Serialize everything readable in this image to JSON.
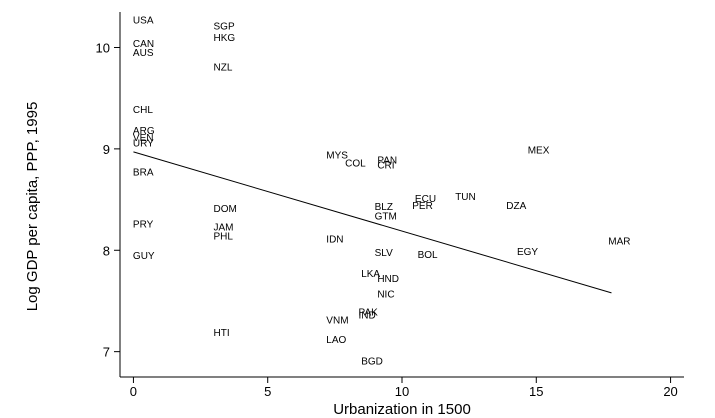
{
  "chart_data": {
    "type": "scatter",
    "title": "",
    "xlabel": "Urbanization in 1500",
    "ylabel": "Log GDP per capita, PPP, 1995",
    "xlim": [
      -0.5,
      20.5
    ],
    "ylim": [
      6.75,
      10.35
    ],
    "xticks": [
      0,
      5,
      10,
      15,
      20
    ],
    "yticks": [
      7,
      8,
      9,
      10
    ],
    "grid": false,
    "legend": "none",
    "marker": "country-code-text",
    "fit_line": {
      "x": [
        0,
        17.8
      ],
      "y": [
        8.97,
        7.58
      ]
    },
    "points": [
      {
        "label": "USA",
        "x": 0.0,
        "y": 10.27
      },
      {
        "label": "CAN",
        "x": 0.0,
        "y": 10.04
      },
      {
        "label": "AUS",
        "x": 0.0,
        "y": 9.95
      },
      {
        "label": "SGP",
        "x": 3.0,
        "y": 10.21
      },
      {
        "label": "HKG",
        "x": 3.0,
        "y": 10.1
      },
      {
        "label": "NZL",
        "x": 3.0,
        "y": 9.81
      },
      {
        "label": "CHL",
        "x": 0.0,
        "y": 9.39
      },
      {
        "label": "ARG",
        "x": 0.0,
        "y": 9.18
      },
      {
        "label": "VEN",
        "x": 0.0,
        "y": 9.11
      },
      {
        "label": "URY",
        "x": 0.0,
        "y": 9.06
      },
      {
        "label": "BRA",
        "x": 0.0,
        "y": 8.77
      },
      {
        "label": "PRY",
        "x": 0.0,
        "y": 8.26
      },
      {
        "label": "GUY",
        "x": 0.0,
        "y": 7.95
      },
      {
        "label": "DOM",
        "x": 3.0,
        "y": 8.41
      },
      {
        "label": "JAM",
        "x": 3.0,
        "y": 8.23
      },
      {
        "label": "PHL",
        "x": 3.0,
        "y": 8.14
      },
      {
        "label": "HTI",
        "x": 3.0,
        "y": 7.19
      },
      {
        "label": "MYS",
        "x": 7.2,
        "y": 8.94
      },
      {
        "label": "COL",
        "x": 7.9,
        "y": 8.86
      },
      {
        "label": "PAN",
        "x": 9.1,
        "y": 8.89
      },
      {
        "label": "CRI",
        "x": 9.1,
        "y": 8.84
      },
      {
        "label": "IDN",
        "x": 7.2,
        "y": 8.11
      },
      {
        "label": "BLZ",
        "x": 9.0,
        "y": 8.43
      },
      {
        "label": "GTM",
        "x": 9.0,
        "y": 8.34
      },
      {
        "label": "SLV",
        "x": 9.0,
        "y": 7.98
      },
      {
        "label": "ECU",
        "x": 10.5,
        "y": 8.51
      },
      {
        "label": "PER",
        "x": 10.4,
        "y": 8.44
      },
      {
        "label": "BOL",
        "x": 10.6,
        "y": 7.96
      },
      {
        "label": "TUN",
        "x": 12.0,
        "y": 8.53
      },
      {
        "label": "DZA",
        "x": 13.9,
        "y": 8.44
      },
      {
        "label": "MEX",
        "x": 14.7,
        "y": 8.99
      },
      {
        "label": "EGY",
        "x": 14.3,
        "y": 7.99
      },
      {
        "label": "MAR",
        "x": 17.7,
        "y": 8.09
      },
      {
        "label": "LKA",
        "x": 8.5,
        "y": 7.77
      },
      {
        "label": "HND",
        "x": 9.1,
        "y": 7.72
      },
      {
        "label": "NIC",
        "x": 9.1,
        "y": 7.57
      },
      {
        "label": "PAK",
        "x": 8.4,
        "y": 7.39
      },
      {
        "label": "IND",
        "x": 8.4,
        "y": 7.36
      },
      {
        "label": "VNM",
        "x": 7.2,
        "y": 7.31
      },
      {
        "label": "LAO",
        "x": 7.2,
        "y": 7.12
      },
      {
        "label": "BGD",
        "x": 8.5,
        "y": 6.91
      }
    ]
  }
}
